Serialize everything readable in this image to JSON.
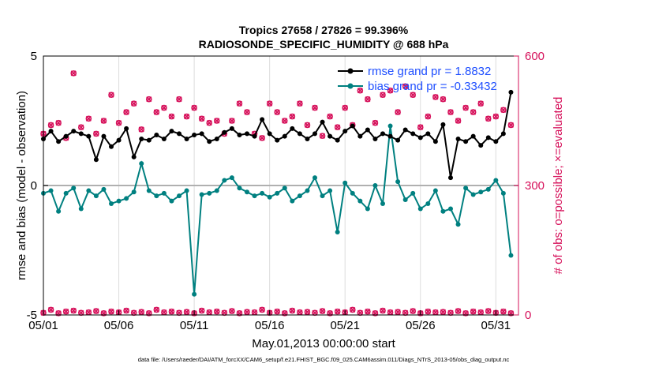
{
  "chart_data": {
    "type": "line",
    "title_line1": "Tropics 27658 / 27826 = 99.396%",
    "title_line2": "RADIOSONDE_SPECIFIC_HUMIDITY @ 688 hPa",
    "xlabel": "May.01,2013 00:00:00 start",
    "ylabel_left": "rmse and bias (model - observation)",
    "ylabel_right": "# of obs: o=possible; ×=evaluated",
    "footnote": "data file: /Users/raeder/DAI/ATM_forcXX/CAM6_setup/f.e21.FHIST_BGC.f09_025.CAM6assim.011/Diags_NTrS_2013-05/obs_diag_output.nc",
    "ylim_left": [
      -5,
      5
    ],
    "ylim_right": [
      0,
      600
    ],
    "xlim": [
      1,
      32.5
    ],
    "left_ticks": [
      "-5",
      "0",
      "5"
    ],
    "left_tick_values": [
      -5,
      0,
      5
    ],
    "right_ticks": [
      "0",
      "300",
      "600"
    ],
    "right_tick_values": [
      0,
      300,
      600
    ],
    "x_ticks": [
      "05/01",
      "05/06",
      "05/11",
      "05/16",
      "05/21",
      "05/26",
      "05/31"
    ],
    "x_tick_values": [
      1,
      6,
      11,
      16,
      21,
      26,
      31
    ],
    "colors": {
      "rmse": "#000000",
      "bias": "#008080",
      "obs": "#d6105a",
      "legend_text": "#1f4fff",
      "zero_line": "#b0b0b0",
      "grid": "#dcdcdc"
    },
    "series": [
      {
        "name": "rmse",
        "legend": "rmse grand pr = 1.8832",
        "x": [
          1.0,
          1.5,
          2.0,
          2.5,
          3.0,
          3.5,
          4.0,
          4.5,
          5.0,
          5.5,
          6.0,
          6.5,
          7.0,
          7.5,
          8.0,
          8.5,
          9.0,
          9.5,
          10.0,
          10.5,
          11.0,
          11.5,
          12.0,
          12.5,
          13.0,
          13.5,
          14.0,
          14.5,
          15.0,
          15.5,
          16.0,
          16.5,
          17.0,
          17.5,
          18.0,
          18.5,
          19.0,
          19.5,
          20.0,
          20.5,
          21.0,
          21.5,
          22.0,
          22.5,
          23.0,
          23.5,
          24.0,
          24.5,
          25.0,
          25.5,
          26.0,
          26.5,
          27.0,
          27.5,
          28.0,
          28.5,
          29.0,
          29.5,
          30.0,
          30.5,
          31.0,
          31.5,
          32.0
        ],
        "values": [
          1.8,
          2.1,
          1.7,
          1.9,
          2.1,
          2.0,
          1.9,
          1.0,
          1.9,
          1.5,
          1.75,
          2.2,
          1.1,
          1.8,
          1.75,
          1.95,
          1.8,
          2.1,
          2.0,
          1.8,
          1.95,
          2.0,
          1.7,
          1.8,
          2.05,
          2.2,
          1.95,
          2.0,
          1.9,
          2.55,
          2.0,
          1.75,
          1.9,
          2.2,
          2.0,
          1.8,
          2.0,
          2.45,
          1.9,
          1.75,
          2.1,
          2.3,
          1.9,
          2.15,
          1.8,
          2.0,
          1.9,
          1.75,
          2.15,
          2.0,
          1.85,
          2.0,
          1.7,
          2.35,
          0.3,
          1.8,
          1.7,
          1.9,
          1.55,
          1.85,
          1.7,
          2.0,
          3.6
        ]
      },
      {
        "name": "bias",
        "legend": "bias grand pr = -0.33432",
        "x": [
          1.0,
          1.5,
          2.0,
          2.5,
          3.0,
          3.5,
          4.0,
          4.5,
          5.0,
          5.5,
          6.0,
          6.5,
          7.0,
          7.5,
          8.0,
          8.5,
          9.0,
          9.5,
          10.0,
          10.5,
          11.0,
          11.5,
          12.0,
          12.5,
          13.0,
          13.5,
          14.0,
          14.5,
          15.0,
          15.5,
          16.0,
          16.5,
          17.0,
          17.5,
          18.0,
          18.5,
          19.0,
          19.5,
          20.0,
          20.5,
          21.0,
          21.5,
          22.0,
          22.5,
          23.0,
          23.5,
          24.0,
          24.5,
          25.0,
          25.5,
          26.0,
          26.5,
          27.0,
          27.5,
          28.0,
          28.5,
          29.0,
          29.5,
          30.0,
          30.5,
          31.0,
          31.5,
          32.0
        ],
        "values": [
          -0.3,
          -0.2,
          -1.0,
          -0.3,
          -0.1,
          -0.9,
          -0.2,
          -0.4,
          -0.15,
          -0.7,
          -0.6,
          -0.5,
          -0.25,
          0.85,
          -0.2,
          -0.4,
          -0.3,
          -0.6,
          -0.4,
          -0.2,
          -4.2,
          -0.35,
          -0.3,
          -0.2,
          0.2,
          0.3,
          -0.1,
          -0.25,
          -0.4,
          -0.3,
          -0.45,
          -0.3,
          -0.1,
          -0.6,
          -0.4,
          -0.2,
          0.3,
          -0.4,
          -0.2,
          -1.8,
          0.1,
          -0.3,
          -0.6,
          -0.9,
          0.0,
          -0.7,
          2.3,
          0.15,
          -0.55,
          -0.3,
          -0.9,
          -0.7,
          -0.2,
          -1.0,
          -0.9,
          -1.5,
          -0.1,
          -0.35,
          -0.25,
          -0.15,
          0.2,
          -0.3,
          -2.7
        ]
      },
      {
        "name": "obs_possible",
        "x": [
          1.0,
          1.5,
          2.0,
          2.5,
          3.0,
          3.5,
          4.0,
          4.5,
          5.0,
          5.5,
          6.0,
          6.5,
          7.0,
          7.5,
          8.0,
          8.5,
          9.0,
          9.5,
          10.0,
          10.5,
          11.0,
          11.5,
          12.0,
          12.5,
          13.0,
          13.5,
          14.0,
          14.5,
          15.0,
          15.5,
          16.0,
          16.5,
          17.0,
          17.5,
          18.0,
          18.5,
          19.0,
          19.5,
          20.0,
          20.5,
          21.0,
          21.5,
          22.0,
          22.5,
          23.0,
          23.5,
          24.0,
          24.5,
          25.0,
          25.5,
          26.0,
          26.5,
          27.0,
          27.5,
          28.0,
          28.5,
          29.0,
          29.5,
          30.0,
          30.5,
          31.0,
          31.5,
          32.0
        ],
        "values": [
          420,
          440,
          445,
          410,
          560,
          435,
          455,
          420,
          450,
          510,
          445,
          470,
          490,
          430,
          500,
          470,
          480,
          460,
          500,
          460,
          480,
          455,
          445,
          450,
          420,
          450,
          490,
          470,
          420,
          410,
          490,
          470,
          450,
          460,
          490,
          440,
          480,
          415,
          460,
          435,
          480,
          440,
          520,
          500,
          445,
          510,
          520,
          470,
          530,
          510,
          435,
          460,
          505,
          500,
          470,
          450,
          480,
          470,
          490,
          455,
          460,
          475,
          440
        ]
      },
      {
        "name": "obs_evaluated",
        "x": [
          1.0,
          1.5,
          2.0,
          2.5,
          3.0,
          3.5,
          4.0,
          4.5,
          5.0,
          5.5,
          6.0,
          6.5,
          7.0,
          7.5,
          8.0,
          8.5,
          9.0,
          9.5,
          10.0,
          10.5,
          11.0,
          11.5,
          12.0,
          12.5,
          13.0,
          13.5,
          14.0,
          14.5,
          15.0,
          15.5,
          16.0,
          16.5,
          17.0,
          17.5,
          18.0,
          18.5,
          19.0,
          19.5,
          20.0,
          20.5,
          21.0,
          21.5,
          22.0,
          22.5,
          23.0,
          23.5,
          24.0,
          24.5,
          25.0,
          25.5,
          26.0,
          26.5,
          27.0,
          27.5,
          28.0,
          28.5,
          29.0,
          29.5,
          30.0,
          30.5,
          31.0,
          31.5,
          32.0
        ],
        "values": [
          5,
          12,
          4,
          8,
          10,
          5,
          6,
          9,
          4,
          8,
          6,
          10,
          5,
          7,
          4,
          12,
          6,
          8,
          5,
          7,
          4,
          10,
          6,
          8,
          5,
          9,
          4,
          7,
          6,
          12,
          5,
          8,
          4,
          10,
          6,
          7,
          5,
          9,
          4,
          8,
          6,
          12,
          5,
          8,
          4,
          10,
          6,
          7,
          5,
          9,
          4,
          8,
          6,
          7,
          5,
          9,
          4,
          8,
          6,
          9,
          5,
          8,
          4
        ]
      }
    ]
  }
}
